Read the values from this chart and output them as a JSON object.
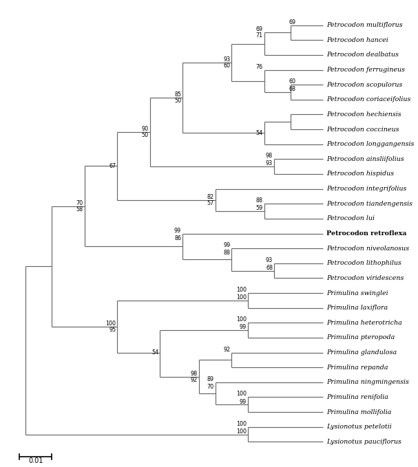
{
  "figsize": [
    6.07,
    6.79
  ],
  "dpi": 100,
  "taxa": [
    "Petrocodon multiflorus",
    "Petrocodon hancei",
    "Petrocodon dealbatus",
    "Petrocodon ferrugineus",
    "Petrocodon scopulorus",
    "Petrocodon coriaceifolius",
    "Petrocodon hechiensis",
    "Petrocodon coccineus",
    "Petrocodon longgangensis",
    "Petrocodon ainsliifolius",
    "Petrocodon hispidus",
    "Petrocodon integrifolius",
    "Petrocodon tiandengensis",
    "Petrocodon lui",
    "Petrocodon retroflexa",
    "Petrocodon niveolanosus",
    "Petrocodon lithophilus",
    "Petrocodon viridescens",
    "Primulina swinglei",
    "Primulina laxiflora",
    "Primulina heterotricha",
    "Primulina pteropoda",
    "Primulina glandulosa",
    "Primulina repanda",
    "Primulina ningmingensis",
    "Primulina renifolia",
    "Primulina mollifolia",
    "Lysionotus petelotii",
    "Lysionotus pauciflorus"
  ],
  "bold_taxa": [
    "Petrocodon retroflexa"
  ],
  "line_color": "#666666",
  "line_width": 0.85,
  "leaf_x": 9.8,
  "xlim": [
    0,
    10.5
  ],
  "ylim": [
    29.5,
    -1.5
  ],
  "scale_bar_x1": 0.5,
  "scale_bar_x2": 1.5,
  "scale_bar_y": 29.0,
  "scale_bar_label": "0.01",
  "font_size_taxa": 6.8,
  "font_size_support": 5.8
}
